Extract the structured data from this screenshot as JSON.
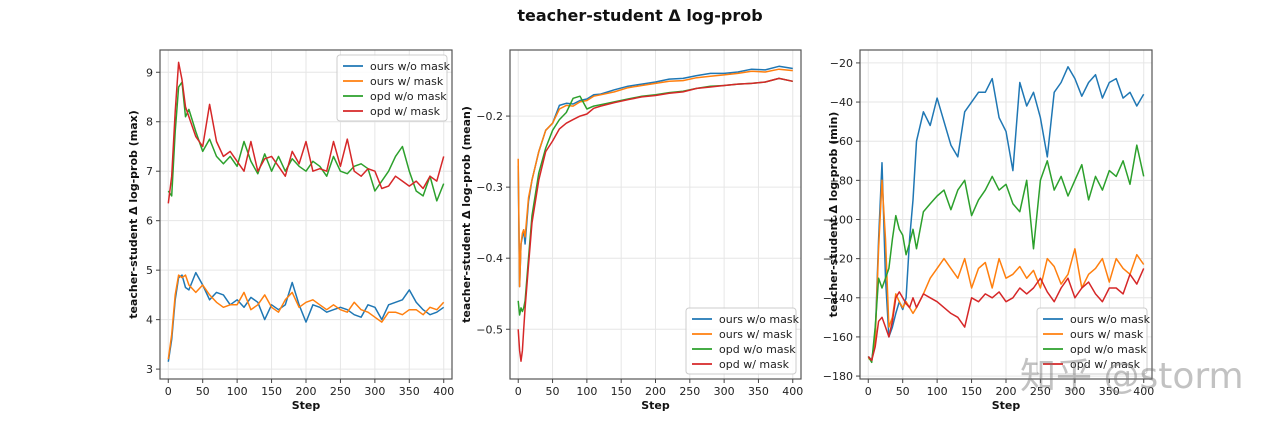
{
  "figure": {
    "suptitle": "teacher-student Δ log-prob",
    "watermark": "知乎 @storm"
  },
  "colors": {
    "ours w/o mask": "#1f77b4",
    "ours w/ mask": "#ff7f0e",
    "opd w/o mask": "#2ca02c",
    "opd w/ mask": "#d62728"
  },
  "chart_data": [
    {
      "type": "line",
      "title": "",
      "xlabel": "Step",
      "ylabel": "teacher-student Δ log-prob (max)",
      "xlim": [
        -12,
        412
      ],
      "ylim": [
        2.8,
        9.45
      ],
      "xticks": [
        0,
        50,
        100,
        150,
        200,
        250,
        300,
        350,
        400
      ],
      "yticks": [
        3,
        4,
        5,
        6,
        7,
        8,
        9
      ],
      "grid": true,
      "legend_position": "upper right",
      "x": [
        0,
        5,
        10,
        15,
        20,
        25,
        30,
        40,
        50,
        60,
        70,
        80,
        90,
        100,
        110,
        120,
        130,
        140,
        150,
        160,
        170,
        180,
        190,
        200,
        210,
        220,
        230,
        240,
        250,
        260,
        270,
        280,
        290,
        300,
        310,
        320,
        330,
        340,
        350,
        360,
        370,
        380,
        390,
        400
      ],
      "series": [
        {
          "name": "ours w/o mask",
          "values": [
            3.15,
            3.6,
            4.4,
            4.85,
            4.9,
            4.65,
            4.6,
            4.95,
            4.7,
            4.4,
            4.55,
            4.5,
            4.3,
            4.4,
            4.25,
            4.45,
            4.35,
            4.0,
            4.3,
            4.2,
            4.3,
            4.75,
            4.3,
            3.95,
            4.3,
            4.25,
            4.15,
            4.2,
            4.25,
            4.2,
            4.1,
            4.05,
            4.3,
            4.25,
            4.0,
            4.3,
            4.35,
            4.4,
            4.6,
            4.35,
            4.2,
            4.1,
            4.15,
            4.25
          ]
        },
        {
          "name": "ours w/ mask",
          "values": [
            3.2,
            3.7,
            4.5,
            4.9,
            4.85,
            4.9,
            4.7,
            4.55,
            4.7,
            4.5,
            4.35,
            4.25,
            4.3,
            4.3,
            4.55,
            4.2,
            4.3,
            4.5,
            4.25,
            4.15,
            4.4,
            4.55,
            4.25,
            4.35,
            4.4,
            4.3,
            4.2,
            4.3,
            4.2,
            4.15,
            4.35,
            4.2,
            4.15,
            4.05,
            3.95,
            4.15,
            4.15,
            4.1,
            4.2,
            4.2,
            4.1,
            4.25,
            4.2,
            4.35
          ]
        },
        {
          "name": "opd w/o mask",
          "values": [
            6.6,
            6.5,
            7.8,
            8.7,
            8.8,
            8.1,
            8.25,
            7.8,
            7.4,
            7.65,
            7.3,
            7.15,
            7.3,
            7.1,
            7.6,
            7.2,
            6.95,
            7.35,
            7.0,
            7.3,
            7.0,
            7.25,
            7.1,
            7.0,
            7.2,
            7.1,
            6.9,
            7.3,
            7.0,
            6.95,
            7.1,
            7.15,
            7.05,
            6.6,
            6.8,
            7.0,
            7.3,
            7.5,
            7.0,
            6.6,
            6.5,
            6.9,
            6.4,
            6.75
          ]
        },
        {
          "name": "opd w/ mask",
          "values": [
            6.35,
            6.9,
            8.2,
            9.2,
            8.85,
            8.3,
            8.1,
            7.7,
            7.5,
            8.35,
            7.6,
            7.3,
            7.4,
            7.2,
            7.0,
            7.6,
            7.0,
            7.25,
            7.3,
            7.1,
            6.9,
            7.4,
            7.15,
            7.6,
            7.0,
            7.05,
            7.0,
            7.6,
            7.1,
            7.65,
            7.0,
            6.9,
            7.05,
            7.0,
            6.65,
            6.7,
            6.9,
            6.8,
            6.7,
            6.8,
            6.65,
            6.9,
            6.8,
            7.3
          ]
        }
      ]
    },
    {
      "type": "line",
      "title": "",
      "xlabel": "Step",
      "ylabel": "teacher-student Δ log-prob (mean)",
      "xlim": [
        -12,
        412
      ],
      "ylim": [
        -0.57,
        -0.107
      ],
      "xticks": [
        0,
        50,
        100,
        150,
        200,
        250,
        300,
        350,
        400
      ],
      "yticks": [
        -0.5,
        -0.4,
        -0.3,
        -0.2
      ],
      "grid": true,
      "legend_position": "lower right",
      "x": [
        0,
        2,
        4,
        6,
        8,
        10,
        15,
        20,
        30,
        40,
        50,
        60,
        70,
        80,
        90,
        100,
        110,
        120,
        140,
        160,
        180,
        200,
        220,
        240,
        260,
        280,
        300,
        320,
        340,
        360,
        380,
        400
      ],
      "series": [
        {
          "name": "ours w/o mask",
          "values": [
            -0.27,
            -0.44,
            -0.38,
            -0.37,
            -0.36,
            -0.38,
            -0.32,
            -0.29,
            -0.25,
            -0.22,
            -0.21,
            -0.185,
            -0.182,
            -0.183,
            -0.178,
            -0.176,
            -0.17,
            -0.169,
            -0.163,
            -0.158,
            -0.155,
            -0.152,
            -0.148,
            -0.147,
            -0.143,
            -0.14,
            -0.14,
            -0.138,
            -0.134,
            -0.135,
            -0.13,
            -0.133
          ]
        },
        {
          "name": "ours w/ mask",
          "values": [
            -0.26,
            -0.44,
            -0.38,
            -0.365,
            -0.36,
            -0.37,
            -0.315,
            -0.29,
            -0.25,
            -0.22,
            -0.21,
            -0.19,
            -0.185,
            -0.186,
            -0.18,
            -0.178,
            -0.172,
            -0.17,
            -0.166,
            -0.16,
            -0.157,
            -0.154,
            -0.151,
            -0.15,
            -0.146,
            -0.144,
            -0.142,
            -0.14,
            -0.137,
            -0.138,
            -0.134,
            -0.136
          ]
        },
        {
          "name": "opd w/o mask",
          "values": [
            -0.46,
            -0.48,
            -0.47,
            -0.475,
            -0.47,
            -0.46,
            -0.4,
            -0.34,
            -0.28,
            -0.245,
            -0.22,
            -0.205,
            -0.195,
            -0.175,
            -0.172,
            -0.19,
            -0.186,
            -0.184,
            -0.18,
            -0.176,
            -0.172,
            -0.17,
            -0.167,
            -0.165,
            -0.161,
            -0.158,
            -0.157,
            -0.155,
            -0.154,
            -0.152,
            -0.147,
            -0.151
          ]
        },
        {
          "name": "opd w/ mask",
          "values": [
            -0.5,
            -0.53,
            -0.545,
            -0.53,
            -0.5,
            -0.47,
            -0.41,
            -0.35,
            -0.29,
            -0.25,
            -0.235,
            -0.218,
            -0.21,
            -0.205,
            -0.2,
            -0.197,
            -0.189,
            -0.186,
            -0.181,
            -0.177,
            -0.173,
            -0.171,
            -0.168,
            -0.166,
            -0.161,
            -0.159,
            -0.157,
            -0.155,
            -0.154,
            -0.152,
            -0.147,
            -0.151
          ]
        }
      ]
    },
    {
      "type": "line",
      "title": "",
      "xlabel": "Step",
      "ylabel": "teacher-student Δ log-prob (min)",
      "xlim": [
        -12,
        412
      ],
      "ylim": [
        -181.5,
        -13.4
      ],
      "xticks": [
        0,
        50,
        100,
        150,
        200,
        250,
        300,
        350,
        400
      ],
      "yticks": [
        -180,
        -160,
        -140,
        -120,
        -100,
        -80,
        -60,
        -40,
        -20
      ],
      "grid": true,
      "legend_position": "lower right",
      "x": [
        0,
        5,
        10,
        15,
        20,
        25,
        30,
        35,
        40,
        45,
        50,
        55,
        60,
        65,
        70,
        80,
        90,
        100,
        110,
        120,
        130,
        140,
        150,
        160,
        170,
        180,
        190,
        200,
        210,
        220,
        230,
        240,
        250,
        260,
        270,
        280,
        290,
        300,
        310,
        320,
        330,
        340,
        350,
        360,
        370,
        380,
        390,
        400
      ],
      "series": [
        {
          "name": "ours w/o mask",
          "values": [
            -170,
            -172,
            -160,
            -110,
            -71,
            -130,
            -160,
            -155,
            -148,
            -142,
            -146,
            -140,
            -110,
            -90,
            -60,
            -45,
            -52,
            -38,
            -50,
            -62,
            -68,
            -45,
            -40,
            -35,
            -35,
            -28,
            -48,
            -55,
            -75,
            -30,
            -42,
            -35,
            -48,
            -68,
            -35,
            -30,
            -22,
            -28,
            -37,
            -30,
            -26,
            -38,
            -30,
            -28,
            -38,
            -35,
            -42,
            -36
          ]
        },
        {
          "name": "ours w/ mask",
          "values": [
            -171,
            -172,
            -162,
            -115,
            -80,
            -110,
            -155,
            -150,
            -138,
            -142,
            -145,
            -142,
            -145,
            -148,
            -145,
            -138,
            -130,
            -125,
            -120,
            -125,
            -130,
            -120,
            -135,
            -125,
            -122,
            -135,
            -120,
            -130,
            -128,
            -124,
            -130,
            -126,
            -135,
            -120,
            -124,
            -133,
            -128,
            -115,
            -135,
            -128,
            -125,
            -120,
            -132,
            -120,
            -125,
            -128,
            -118,
            -123
          ]
        },
        {
          "name": "opd w/o mask",
          "values": [
            -170,
            -173,
            -155,
            -130,
            -135,
            -130,
            -125,
            -110,
            -98,
            -105,
            -108,
            -118,
            -112,
            -105,
            -115,
            -96,
            -92,
            -88,
            -85,
            -95,
            -85,
            -80,
            -98,
            -90,
            -85,
            -78,
            -85,
            -82,
            -92,
            -96,
            -80,
            -115,
            -80,
            -70,
            -85,
            -78,
            -88,
            -80,
            -72,
            -90,
            -78,
            -85,
            -75,
            -78,
            -70,
            -82,
            -62,
            -78
          ]
        },
        {
          "name": "opd w/ mask",
          "values": [
            -170,
            -172,
            -165,
            -152,
            -150,
            -155,
            -160,
            -152,
            -140,
            -137,
            -140,
            -143,
            -145,
            -140,
            -145,
            -138,
            -140,
            -142,
            -145,
            -148,
            -150,
            -155,
            -140,
            -142,
            -138,
            -140,
            -137,
            -142,
            -140,
            -135,
            -138,
            -135,
            -130,
            -137,
            -142,
            -135,
            -130,
            -140,
            -135,
            -132,
            -138,
            -142,
            -135,
            -135,
            -138,
            -128,
            -133,
            -125
          ]
        }
      ]
    }
  ],
  "legend": [
    "ours w/o mask",
    "ours w/ mask",
    "opd w/o mask",
    "opd w/ mask"
  ]
}
